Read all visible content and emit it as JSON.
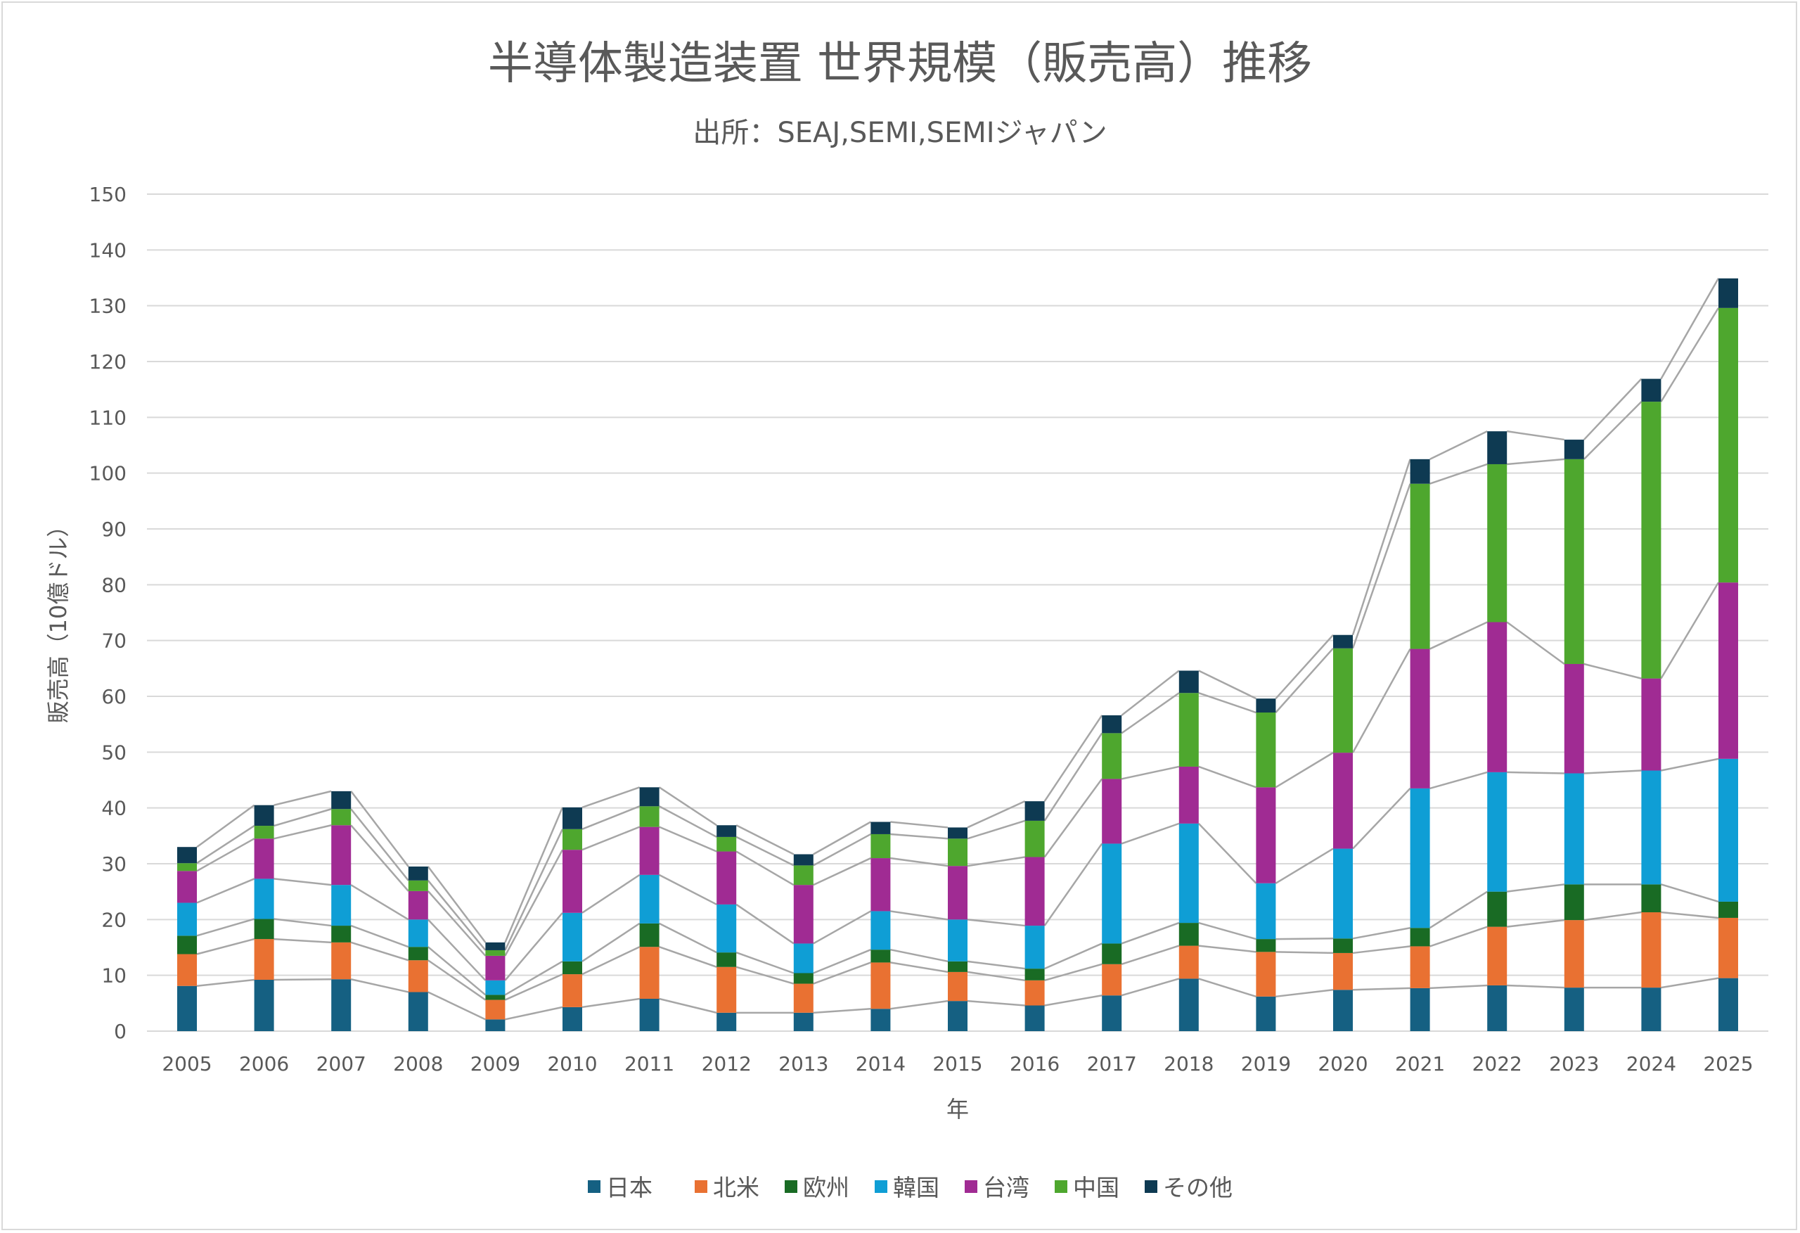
{
  "chart_data": {
    "type": "bar",
    "stacked": true,
    "title": "半導体製造装置 世界規模（販売高）推移",
    "subtitle": "出所：SEAJ,SEMI,SEMIジャパン",
    "xlabel": "年",
    "ylabel": "販売高（10億ドル）",
    "ylim": [
      0,
      150
    ],
    "yticks": [
      0,
      10,
      20,
      30,
      40,
      50,
      60,
      70,
      80,
      90,
      100,
      110,
      120,
      130,
      140,
      150
    ],
    "grid": true,
    "series_lines": true,
    "legend_position": "bottom",
    "categories": [
      "2005",
      "2006",
      "2007",
      "2008",
      "2009",
      "2010",
      "2011",
      "2012",
      "2013",
      "2014",
      "2015",
      "2016",
      "2017",
      "2018",
      "2019",
      "2020",
      "2021",
      "2022",
      "2023",
      "2024",
      "2025"
    ],
    "series": [
      {
        "name": "日本",
        "color": "#156082",
        "values": [
          8.1,
          9.2,
          9.3,
          7.0,
          2.1,
          4.3,
          5.8,
          3.3,
          3.3,
          4.0,
          5.4,
          4.6,
          6.4,
          9.4,
          6.2,
          7.4,
          7.7,
          8.2,
          7.8,
          7.8,
          9.5
        ]
      },
      {
        "name": "北米",
        "color": "#E97132",
        "values": [
          5.7,
          7.3,
          6.6,
          5.7,
          3.5,
          5.9,
          9.3,
          8.2,
          5.2,
          8.3,
          5.2,
          4.5,
          5.6,
          5.9,
          8.0,
          6.6,
          7.5,
          10.5,
          12.1,
          13.5,
          10.8
        ]
      },
      {
        "name": "欧州",
        "color": "#196B24",
        "values": [
          3.3,
          3.6,
          3.0,
          2.4,
          0.9,
          2.3,
          4.2,
          2.6,
          1.9,
          2.3,
          1.9,
          2.1,
          3.7,
          4.1,
          2.3,
          2.6,
          3.3,
          6.3,
          6.4,
          5.0,
          2.9
        ]
      },
      {
        "name": "韓国",
        "color": "#0F9ED5",
        "values": [
          5.9,
          7.2,
          7.3,
          4.9,
          2.6,
          8.7,
          8.7,
          8.6,
          5.3,
          6.9,
          7.5,
          7.7,
          17.9,
          17.8,
          10.0,
          16.1,
          25.0,
          21.4,
          19.9,
          20.4,
          25.6
        ]
      },
      {
        "name": "台湾",
        "color": "#A02B93",
        "values": [
          5.7,
          7.2,
          10.7,
          5.1,
          4.4,
          11.3,
          8.6,
          9.5,
          10.5,
          9.5,
          9.6,
          12.3,
          11.6,
          10.2,
          17.2,
          17.2,
          25.0,
          26.9,
          19.6,
          16.5,
          31.6
        ]
      },
      {
        "name": "中国",
        "color": "#4EA72E",
        "values": [
          1.4,
          2.3,
          2.9,
          1.9,
          1.0,
          3.7,
          3.7,
          2.6,
          3.5,
          4.3,
          4.9,
          6.5,
          8.2,
          13.2,
          13.4,
          18.7,
          29.6,
          28.3,
          36.7,
          49.6,
          49.2
        ]
      },
      {
        "name": "その他",
        "color": "#0E3A52",
        "values": [
          2.9,
          3.7,
          3.2,
          2.5,
          1.4,
          3.9,
          3.4,
          2.1,
          2.0,
          2.2,
          2.0,
          3.5,
          3.2,
          4.0,
          2.5,
          2.4,
          4.4,
          5.9,
          3.5,
          4.1,
          5.3
        ]
      }
    ]
  }
}
